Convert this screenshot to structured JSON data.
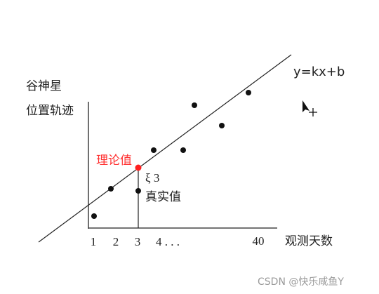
{
  "y_axis_label": [
    "谷神星",
    "位置轨迹"
  ],
  "equation": "y=kx+b",
  "theory_label": "理论值",
  "error_label": "ξ 3",
  "actual_label": "真实值",
  "x_labels": [
    "1",
    "2",
    "3",
    "4 . . .",
    "40"
  ],
  "x_axis_label": "观测天数",
  "watermark": "CSDN @快乐咸鱼Y"
}
